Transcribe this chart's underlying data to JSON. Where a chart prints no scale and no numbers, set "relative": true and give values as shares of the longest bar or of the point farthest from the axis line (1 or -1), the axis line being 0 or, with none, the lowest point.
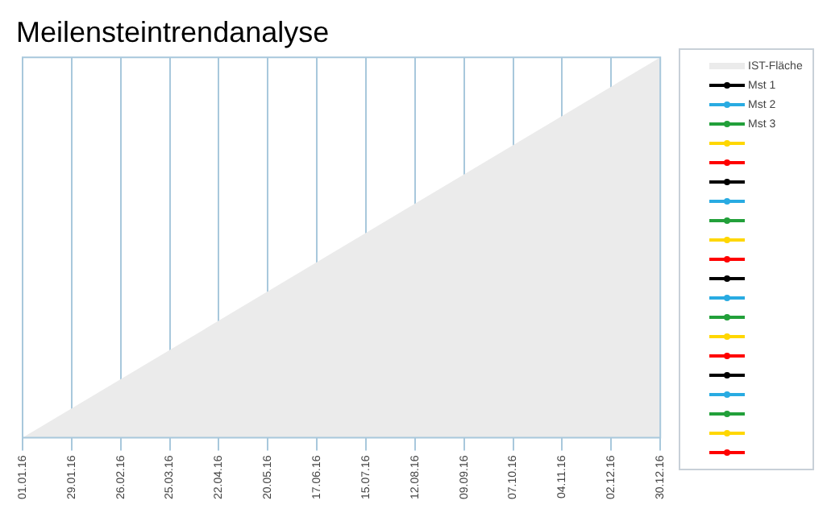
{
  "chart_data": {
    "type": "line",
    "title": "Meilensteintrendanalyse",
    "relative": true,
    "grid": "x",
    "legend": "right",
    "x": [
      "2016-01-01",
      "2016-12-30"
    ],
    "xlim": [
      "2016-01-01",
      "2016-12-30"
    ],
    "xticks": [
      {
        "value": "2016-01-01",
        "label": "01.01.16"
      },
      {
        "value": "2016-01-29",
        "label": "29.01.16"
      },
      {
        "value": "2016-02-26",
        "label": "26.02.16"
      },
      {
        "value": "2016-03-25",
        "label": "25.03.16"
      },
      {
        "value": "2016-04-22",
        "label": "22.04.16"
      },
      {
        "value": "2016-05-20",
        "label": "20.05.16"
      },
      {
        "value": "2016-06-17",
        "label": "17.06.16"
      },
      {
        "value": "2016-07-15",
        "label": "15.07.16"
      },
      {
        "value": "2016-08-12",
        "label": "12.08.16"
      },
      {
        "value": "2016-09-09",
        "label": "09.09.16"
      },
      {
        "value": "2016-10-07",
        "label": "07.10.16"
      },
      {
        "value": "2016-11-04",
        "label": "04.11.16"
      },
      {
        "value": "2016-12-02",
        "label": "02.12.16"
      },
      {
        "value": "2016-12-30",
        "label": "30.12.16"
      }
    ],
    "series": [
      {
        "name": "IST-Fläche",
        "type": "area",
        "color": "#ebebeb",
        "values": [
          0,
          1
        ]
      },
      {
        "name": "Mst 1",
        "color": "#000000",
        "values": [
          null,
          null
        ]
      },
      {
        "name": "Mst 2",
        "color": "#29abe2",
        "values": [
          null,
          null
        ]
      },
      {
        "name": "Mst 3",
        "color": "#22a03a",
        "values": [
          null,
          null
        ]
      },
      {
        "color": "#ffd700",
        "values": [
          null,
          null
        ]
      },
      {
        "color": "#ff0000",
        "values": [
          null,
          null
        ]
      },
      {
        "color": "#000000",
        "values": [
          null,
          null
        ]
      },
      {
        "color": "#29abe2",
        "values": [
          null,
          null
        ]
      },
      {
        "color": "#22a03a",
        "values": [
          null,
          null
        ]
      },
      {
        "color": "#ffd700",
        "values": [
          null,
          null
        ]
      },
      {
        "color": "#ff0000",
        "values": [
          null,
          null
        ]
      },
      {
        "color": "#000000",
        "values": [
          null,
          null
        ]
      },
      {
        "color": "#29abe2",
        "values": [
          null,
          null
        ]
      },
      {
        "color": "#22a03a",
        "values": [
          null,
          null
        ]
      },
      {
        "color": "#ffd700",
        "values": [
          null,
          null
        ]
      },
      {
        "color": "#ff0000",
        "values": [
          null,
          null
        ]
      },
      {
        "color": "#000000",
        "values": [
          null,
          null
        ]
      },
      {
        "color": "#29abe2",
        "values": [
          null,
          null
        ]
      },
      {
        "color": "#22a03a",
        "values": [
          null,
          null
        ]
      },
      {
        "color": "#ffd700",
        "values": [
          null,
          null
        ]
      },
      {
        "color": "#ff0000",
        "values": [
          null,
          null
        ]
      }
    ]
  }
}
